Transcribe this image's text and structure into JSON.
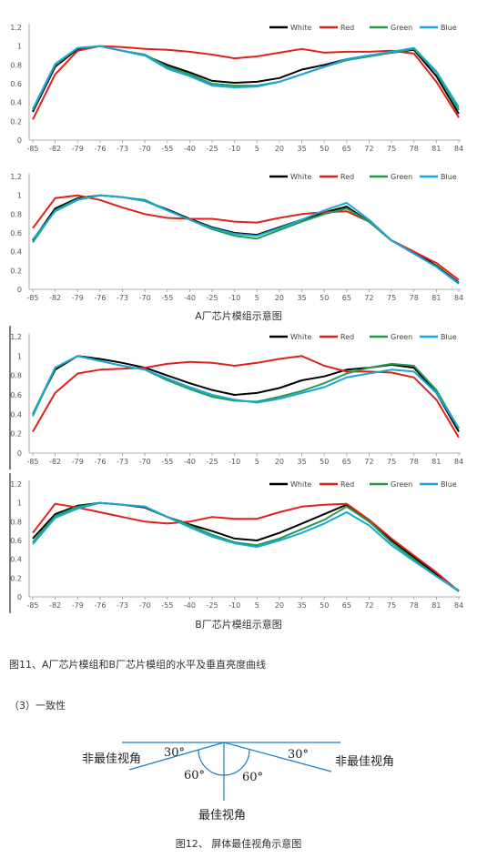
{
  "chart_data": [
    {
      "type": "line",
      "x": [
        "-85",
        "-82",
        "-79",
        "-76",
        "-73",
        "-70",
        "-55",
        "-40",
        "-25",
        "-10",
        "5",
        "20",
        "35",
        "50",
        "65",
        "72",
        "75",
        "78",
        "81",
        "84"
      ],
      "ylim": [
        0,
        1.2
      ],
      "yticks": [
        "0",
        "0.2",
        "0.4",
        "0.6",
        "0.8",
        "1",
        "1.2"
      ],
      "series": [
        {
          "name": "White",
          "color": "#000000",
          "values": [
            0.3,
            0.78,
            0.97,
            1.0,
            0.95,
            0.9,
            0.8,
            0.72,
            0.63,
            0.61,
            0.62,
            0.66,
            0.75,
            0.8,
            0.86,
            0.9,
            0.93,
            0.96,
            0.68,
            0.28
          ]
        },
        {
          "name": "Red",
          "color": "#e0201b",
          "values": [
            0.22,
            0.7,
            0.95,
            1.0,
            0.99,
            0.97,
            0.96,
            0.94,
            0.91,
            0.87,
            0.89,
            0.93,
            0.97,
            0.93,
            0.94,
            0.94,
            0.95,
            0.92,
            0.62,
            0.24
          ]
        },
        {
          "name": "Green",
          "color": "#1f9e4a",
          "values": [
            0.32,
            0.8,
            0.98,
            1.0,
            0.95,
            0.91,
            0.78,
            0.7,
            0.6,
            0.58,
            0.58,
            0.62,
            0.7,
            0.78,
            0.85,
            0.89,
            0.93,
            0.97,
            0.72,
            0.32
          ]
        },
        {
          "name": "Blue",
          "color": "#1aa6db",
          "values": [
            0.33,
            0.81,
            0.98,
            1.0,
            0.95,
            0.9,
            0.76,
            0.68,
            0.58,
            0.56,
            0.57,
            0.62,
            0.7,
            0.78,
            0.86,
            0.9,
            0.94,
            0.98,
            0.73,
            0.35
          ]
        }
      ]
    },
    {
      "type": "line",
      "x": [
        "-85",
        "-82",
        "-79",
        "-76",
        "-73",
        "-70",
        "-55",
        "-40",
        "-25",
        "-10",
        "5",
        "20",
        "35",
        "50",
        "65",
        "72",
        "75",
        "78",
        "81",
        "84"
      ],
      "ylim": [
        0,
        1.2
      ],
      "yticks": [
        "0",
        "0.2",
        "0.4",
        "0.6",
        "0.8",
        "1",
        "1.2"
      ],
      "series": [
        {
          "name": "White",
          "color": "#000000",
          "values": [
            0.52,
            0.86,
            0.97,
            1.0,
            0.98,
            0.94,
            0.85,
            0.75,
            0.66,
            0.6,
            0.58,
            0.66,
            0.74,
            0.82,
            0.88,
            0.72,
            0.52,
            0.4,
            0.25,
            0.07
          ]
        },
        {
          "name": "Red",
          "color": "#e0201b",
          "values": [
            0.65,
            0.97,
            1.0,
            0.95,
            0.87,
            0.8,
            0.76,
            0.75,
            0.75,
            0.72,
            0.71,
            0.76,
            0.8,
            0.82,
            0.83,
            0.72,
            0.52,
            0.4,
            0.28,
            0.1
          ]
        },
        {
          "name": "Green",
          "color": "#1f9e4a",
          "values": [
            0.5,
            0.84,
            0.96,
            1.0,
            0.98,
            0.95,
            0.84,
            0.74,
            0.64,
            0.57,
            0.54,
            0.63,
            0.72,
            0.8,
            0.86,
            0.72,
            0.52,
            0.38,
            0.24,
            0.06
          ]
        },
        {
          "name": "Blue",
          "color": "#1aa6db",
          "values": [
            0.53,
            0.83,
            0.95,
            1.0,
            0.98,
            0.94,
            0.84,
            0.74,
            0.65,
            0.59,
            0.57,
            0.65,
            0.74,
            0.84,
            0.92,
            0.74,
            0.52,
            0.38,
            0.24,
            0.06
          ]
        }
      ]
    },
    {
      "type": "line",
      "x": [
        "-85",
        "-82",
        "-79",
        "-76",
        "-73",
        "-70",
        "-55",
        "-40",
        "-25",
        "-10",
        "5",
        "20",
        "35",
        "50",
        "65",
        "72",
        "75",
        "78",
        "81",
        "84"
      ],
      "ylim": [
        0,
        1.2
      ],
      "yticks": [
        "0",
        "0.2",
        "0.4",
        "0.6",
        "0.8",
        "1",
        "1.2"
      ],
      "series": [
        {
          "name": "White",
          "color": "#000000",
          "values": [
            0.4,
            0.86,
            1.0,
            0.97,
            0.93,
            0.88,
            0.8,
            0.72,
            0.65,
            0.6,
            0.62,
            0.67,
            0.75,
            0.79,
            0.86,
            0.88,
            0.91,
            0.88,
            0.62,
            0.22
          ]
        },
        {
          "name": "Red",
          "color": "#e0201b",
          "values": [
            0.22,
            0.62,
            0.82,
            0.86,
            0.87,
            0.88,
            0.92,
            0.94,
            0.93,
            0.9,
            0.93,
            0.97,
            1.0,
            0.9,
            0.84,
            0.84,
            0.83,
            0.78,
            0.55,
            0.16
          ]
        },
        {
          "name": "Green",
          "color": "#1f9e4a",
          "values": [
            0.4,
            0.88,
            1.0,
            0.95,
            0.9,
            0.86,
            0.75,
            0.66,
            0.58,
            0.54,
            0.53,
            0.58,
            0.64,
            0.72,
            0.82,
            0.88,
            0.92,
            0.9,
            0.65,
            0.25
          ]
        },
        {
          "name": "Blue",
          "color": "#1aa6db",
          "values": [
            0.38,
            0.88,
            1.0,
            0.95,
            0.9,
            0.86,
            0.77,
            0.68,
            0.6,
            0.55,
            0.52,
            0.56,
            0.62,
            0.68,
            0.78,
            0.82,
            0.86,
            0.84,
            0.62,
            0.26
          ]
        }
      ]
    },
    {
      "type": "line",
      "x": [
        "-85",
        "-82",
        "-79",
        "-76",
        "-73",
        "-70",
        "-55",
        "-40",
        "-25",
        "-10",
        "5",
        "20",
        "35",
        "50",
        "65",
        "72",
        "75",
        "78",
        "81",
        "84"
      ],
      "ylim": [
        0,
        1.2
      ],
      "yticks": [
        "0",
        "0.2",
        "0.4",
        "0.6",
        "0.8",
        "1",
        "1.2"
      ],
      "series": [
        {
          "name": "White",
          "color": "#000000",
          "values": [
            0.62,
            0.88,
            0.97,
            1.0,
            0.98,
            0.95,
            0.85,
            0.77,
            0.7,
            0.62,
            0.6,
            0.68,
            0.78,
            0.88,
            0.98,
            0.8,
            0.6,
            0.42,
            0.24,
            0.06
          ]
        },
        {
          "name": "Red",
          "color": "#e0201b",
          "values": [
            0.68,
            0.99,
            0.95,
            0.9,
            0.85,
            0.8,
            0.78,
            0.8,
            0.85,
            0.83,
            0.83,
            0.9,
            0.96,
            0.98,
            0.99,
            0.82,
            0.62,
            0.44,
            0.26,
            0.06
          ]
        },
        {
          "name": "Green",
          "color": "#1f9e4a",
          "values": [
            0.58,
            0.86,
            0.96,
            1.0,
            0.98,
            0.96,
            0.85,
            0.76,
            0.66,
            0.58,
            0.55,
            0.62,
            0.72,
            0.82,
            0.96,
            0.8,
            0.58,
            0.4,
            0.22,
            0.06
          ]
        },
        {
          "name": "Blue",
          "color": "#1aa6db",
          "values": [
            0.56,
            0.84,
            0.94,
            1.0,
            0.98,
            0.96,
            0.85,
            0.74,
            0.64,
            0.57,
            0.53,
            0.6,
            0.68,
            0.78,
            0.9,
            0.76,
            0.55,
            0.38,
            0.22,
            0.07
          ]
        }
      ]
    }
  ],
  "captions": {
    "a_group": "A厂芯片模组示意图",
    "b_group": "B厂芯片模组示意图",
    "fig11": "图11、A厂芯片模组和B厂芯片模组的水平及垂直亮度曲线",
    "section": "（3）一致性",
    "fig12": "图12、 屏体最佳视角示意图"
  },
  "diagram": {
    "left_label": "非最佳视角",
    "right_label": "非最佳视角",
    "bottom_label": "最佳视角",
    "angle_left_top": "30°",
    "angle_right_top": "30°",
    "angle_left_bottom": "60°",
    "angle_right_bottom": "60°"
  }
}
